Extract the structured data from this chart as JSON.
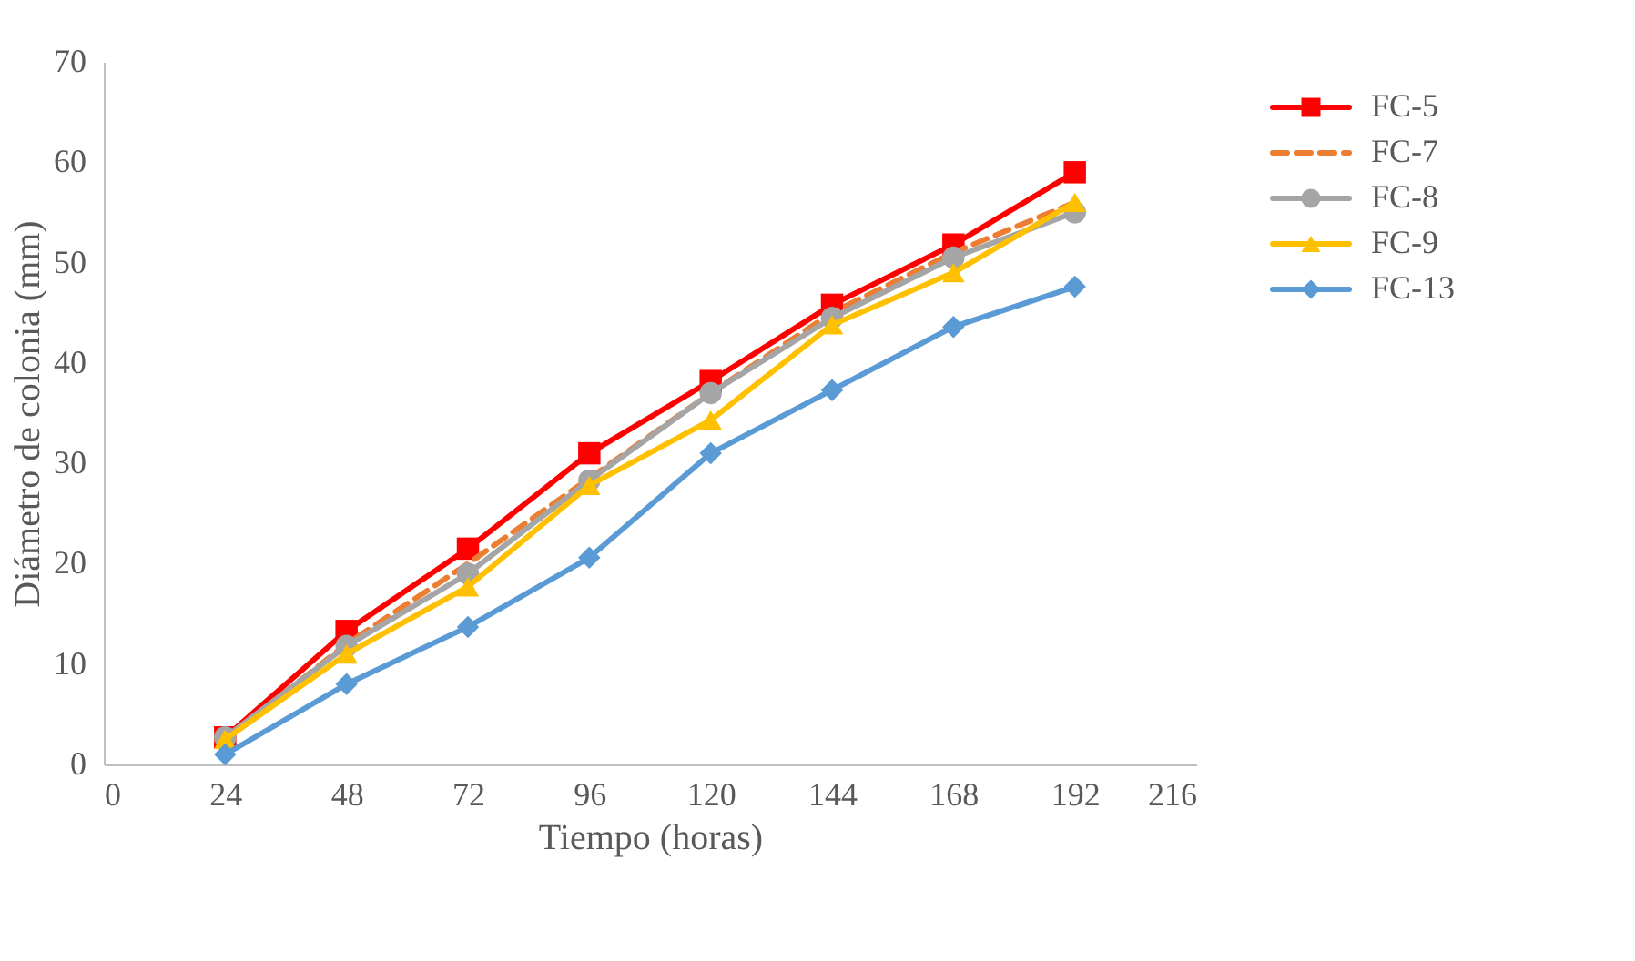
{
  "chart_data": {
    "type": "line",
    "xlabel": "Tiempo (horas)",
    "ylabel": "Diámetro de colonia (mm)",
    "x": [
      24,
      48,
      72,
      96,
      120,
      144,
      168,
      192
    ],
    "xlim": [
      0,
      216
    ],
    "xticks": [
      0,
      24,
      48,
      72,
      96,
      120,
      144,
      168,
      192,
      216
    ],
    "ylim": [
      0,
      70
    ],
    "yticks": [
      0,
      10,
      20,
      30,
      40,
      50,
      60,
      70
    ],
    "grid": false,
    "legend": "right",
    "series": [
      {
        "name": "FC-5",
        "color": "#ff0000",
        "marker": "square",
        "line_style": "solid",
        "values": [
          2.7,
          13.3,
          21.5,
          31,
          38.2,
          45.8,
          51.8,
          59
        ]
      },
      {
        "name": "FC-7",
        "color": "#ed7d31",
        "marker": "none",
        "line_style": "dashed",
        "values": [
          2.5,
          12,
          20,
          28.5,
          37,
          45,
          51,
          56
        ]
      },
      {
        "name": "FC-8",
        "color": "#a5a5a5",
        "marker": "circle",
        "line_style": "solid",
        "values": [
          2.7,
          11.8,
          19,
          28.3,
          37,
          44.5,
          50.5,
          55
        ]
      },
      {
        "name": "FC-9",
        "color": "#ffc000",
        "marker": "triangle",
        "line_style": "solid",
        "values": [
          2.5,
          11,
          17.7,
          27.8,
          34.3,
          43.8,
          49,
          56
        ]
      },
      {
        "name": "FC-13",
        "color": "#5b9bd5",
        "marker": "diamond",
        "line_style": "solid",
        "values": [
          1,
          8,
          13.7,
          20.6,
          31,
          37.3,
          43.6,
          47.6
        ]
      }
    ]
  }
}
